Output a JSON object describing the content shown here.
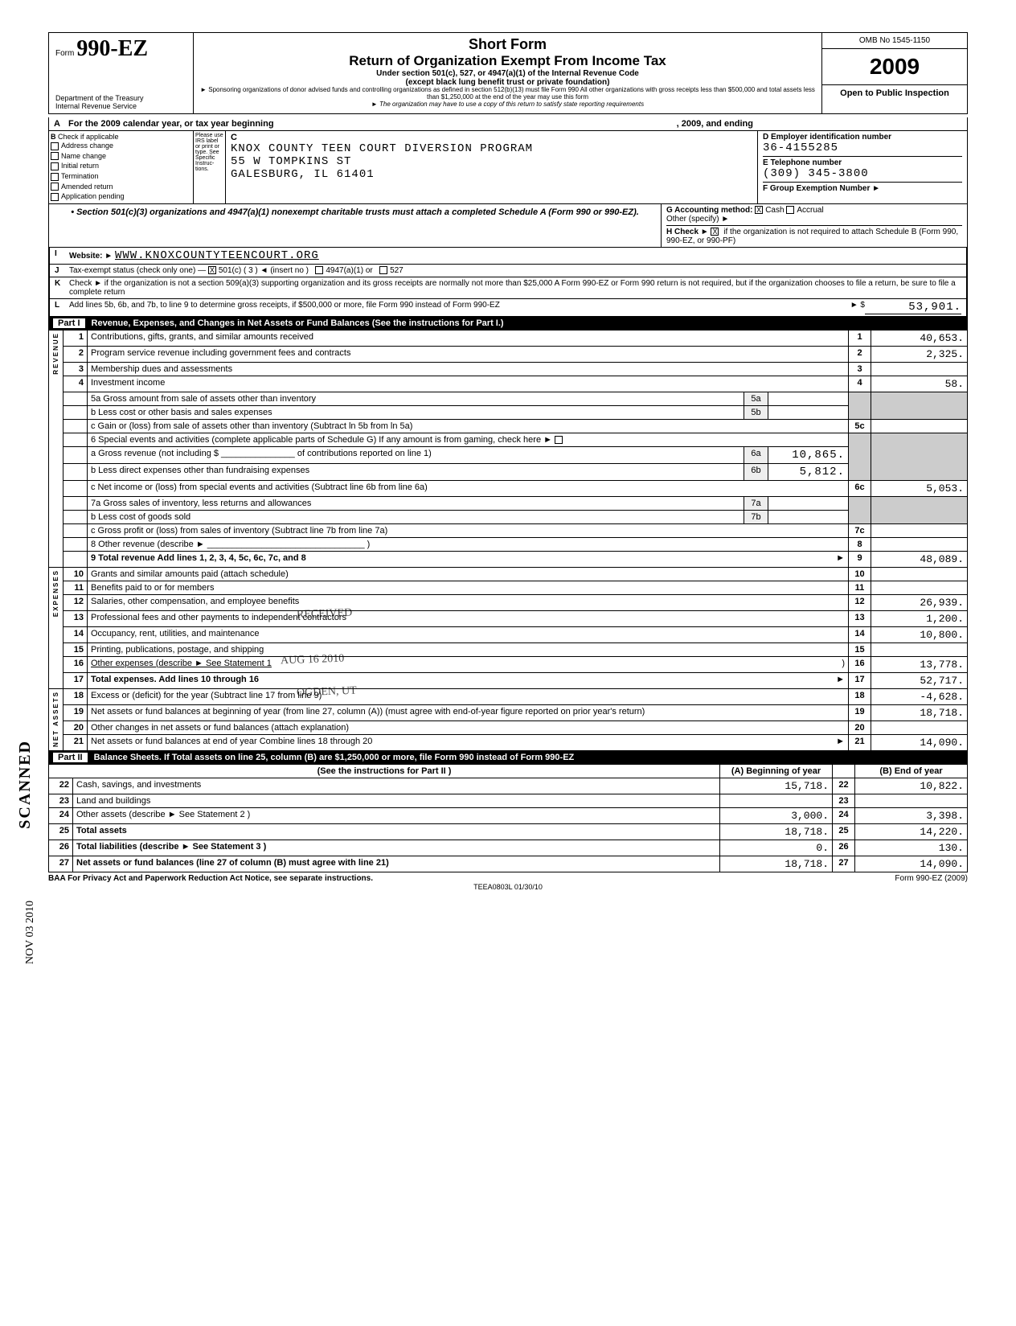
{
  "header": {
    "form_label": "Form",
    "form_number": "990-EZ",
    "short_form": "Short Form",
    "title": "Return of Organization Exempt From Income Tax",
    "subtitle1": "Under section 501(c), 527, or 4947(a)(1) of the Internal Revenue Code",
    "subtitle2": "(except black lung benefit trust or private foundation)",
    "note1": "► Sponsoring organizations of donor advised funds and controlling organizations as defined in section 512(b)(13) must file Form 990  All other organizations with gross receipts less than $500,000 and total assets less than $1,250,000 at the end of the year may use this form",
    "note2": "► The organization may have to use a copy of this return to satisfy state reporting requirements",
    "dept1": "Department of the Treasury",
    "dept2": "Internal Revenue Service",
    "omb": "OMB No  1545-1150",
    "year": "2009",
    "open": "Open to Public Inspection"
  },
  "section_a": {
    "a_text": "For the 2009 calendar year, or tax year beginning",
    "a_mid": ", 2009, and ending",
    "b_label": "Check if applicable",
    "b_items": [
      "Address change",
      "Name change",
      "Initial return",
      "Termination",
      "Amended return",
      "Application pending"
    ],
    "b_note": "Please use IRS label or print or type. See Specific Instruc-tions.",
    "c_label": "C",
    "org_name": "KNOX COUNTY TEEN COURT DIVERSION PROGRAM",
    "addr1": "55 W TOMPKINS ST",
    "addr2": "GALESBURG, IL 61401",
    "d_label": "D  Employer identification number",
    "ein": "36-4155285",
    "e_label": "E  Telephone number",
    "phone": "(309) 345-3800",
    "f_label": "F  Group Exemption Number",
    "f_arrow": "►"
  },
  "trust": {
    "left": "• Section 501(c)(3) organizations and 4947(a)(1) nonexempt charitable trusts must attach a completed Schedule A (Form 990 or 990-EZ).",
    "g_label": "G  Accounting method:",
    "g_cash": "Cash",
    "g_accrual": "Accrual",
    "g_other": "Other (specify) ►",
    "h_label": "H  Check ►",
    "h_text": "if the organization is not required to attach Schedule B (Form 990, 990-EZ, or 990-PF)"
  },
  "lines": {
    "i_label": "I",
    "website_label": "Website: ►",
    "website": "WWW.KNOXCOUNTYTEENCOURT.ORG",
    "j_label": "J",
    "j_text": "Tax-exempt status (check only one) —",
    "j_501c": "501(c)  (   3   )  ◄ (insert no )",
    "j_4947": "4947(a)(1) or",
    "j_527": "527",
    "k_label": "K",
    "k_text": "Check ►         if the organization is not a section 509(a)(3) supporting organization and its gross receipts are normally not more than $25,000  A Form 990-EZ or Form 990 return is not required, but if the organization chooses to file a return, be sure to file a complete return",
    "l_label": "L",
    "l_text": "Add lines 5b, 6b, and 7b, to line 9 to determine gross receipts, if $500,000 or more, file Form 990 instead of Form 990-EZ",
    "l_arrow": "► $",
    "l_value": "53,901."
  },
  "part1": {
    "label": "Part I",
    "title": "Revenue, Expenses, and Changes in Net Assets or Fund Balances (See the instructions for Part I.)",
    "rev_label": "REVENUE",
    "exp_label": "EXPENSES",
    "net_label": "NET ASSETS",
    "rows": [
      {
        "n": "1",
        "d": "Contributions, gifts, grants, and similar amounts received",
        "box": "1",
        "v": "40,653."
      },
      {
        "n": "2",
        "d": "Program service revenue including government fees and contracts",
        "box": "2",
        "v": "2,325."
      },
      {
        "n": "3",
        "d": "Membership dues and assessments",
        "box": "3",
        "v": ""
      },
      {
        "n": "4",
        "d": "Investment income",
        "box": "4",
        "v": "58."
      }
    ],
    "r5a_d": "5a Gross amount from sale of assets other than inventory",
    "r5a_box": "5a",
    "r5b_d": "b Less  cost or other basis and sales expenses",
    "r5b_box": "5b",
    "r5c_d": "c Gain or (loss) from sale of assets other than inventory (Subtract ln 5b from ln 5a)",
    "r5c_box": "5c",
    "r6_d": "6    Special events and activities (complete applicable parts of Schedule G)  If any amount is from gaming, check here",
    "r6_arrow": "►",
    "r6a_d": "a Gross revenue (not including $ _______________ of contributions reported on line 1)",
    "r6a_box": "6a",
    "r6a_v": "10,865.",
    "r6b_d": "b Less  direct expenses other than fundraising expenses",
    "r6b_box": "6b",
    "r6b_v": "5,812.",
    "r6c_d": "c Net income or (loss) from special events and activities (Subtract line 6b from line 6a)",
    "r6c_box": "6c",
    "r6c_v": "5,053.",
    "r7a_d": "7a Gross sales of inventory, less returns and allowances",
    "r7a_box": "7a",
    "r7b_d": "b Less  cost of goods sold",
    "r7b_box": "7b",
    "r7c_d": "c Gross profit or (loss) from sales of inventory (Subtract line 7b from line 7a)",
    "r7c_box": "7c",
    "r8_d": "8    Other revenue (describe ►",
    "r8_box": "8",
    "r9_d": "9    Total revenue  Add lines 1, 2, 3, 4, 5c, 6c, 7c, and 8",
    "r9_arrow": "►",
    "r9_box": "9",
    "r9_v": "48,089.",
    "r10_d": "Grants and similar amounts paid (attach schedule)",
    "r10_n": "10",
    "r10_box": "10",
    "r11_d": "Benefits paid to or for members",
    "r11_n": "11",
    "r11_box": "11",
    "r12_d": "Salaries, other compensation, and employee benefits",
    "r12_n": "12",
    "r12_box": "12",
    "r12_v": "26,939.",
    "r13_d": "Professional fees and other payments to independent contractors",
    "r13_n": "13",
    "r13_box": "13",
    "r13_v": "1,200.",
    "r14_d": "Occupancy, rent, utilities, and maintenance",
    "r14_n": "14",
    "r14_box": "14",
    "r14_v": "10,800.",
    "r15_d": "Printing, publications, postage, and shipping",
    "r15_n": "15",
    "r15_box": "15",
    "r16_d": "Other expenses (describe ►  See Statement 1",
    "r16_n": "16",
    "r16_box": "16",
    "r16_v": "13,778.",
    "r17_d": "Total expenses. Add lines 10 through 16",
    "r17_n": "17",
    "r17_arrow": "►",
    "r17_box": "17",
    "r17_v": "52,717.",
    "r18_d": "Excess or (deficit) for the year (Subtract line 17 from line 9)",
    "r18_n": "18",
    "r18_box": "18",
    "r18_v": "-4,628.",
    "r19_d": "Net assets or fund balances at beginning of year (from line 27, column (A)) (must agree with end-of-year figure reported on prior year's return)",
    "r19_n": "19",
    "r19_box": "19",
    "r19_v": "18,718.",
    "r20_d": "Other changes in net assets or fund balances (attach explanation)",
    "r20_n": "20",
    "r20_box": "20",
    "r21_d": "Net assets or fund balances at end of year  Combine lines 18 through 20",
    "r21_n": "21",
    "r21_arrow": "►",
    "r21_box": "21",
    "r21_v": "14,090.",
    "stamp_received": "RECEIVED",
    "stamp_date": "AUG 16 2010",
    "stamp_ogden": "OGDEN, UT"
  },
  "part2": {
    "label": "Part II",
    "title": "Balance Sheets. If Total assets on line 25, column (B) are $1,250,000 or more, file Form 990 instead of Form 990-EZ",
    "instr": "(See the instructions for Part II )",
    "col_a": "(A) Beginning of year",
    "col_b": "(B) End of year",
    "rows": [
      {
        "n": "22",
        "d": "Cash, savings, and investments",
        "a": "15,718.",
        "box": "22",
        "b": "10,822."
      },
      {
        "n": "23",
        "d": "Land and buildings",
        "a": "",
        "box": "23",
        "b": ""
      },
      {
        "n": "24",
        "d": "Other assets (describe ►  See Statement 2                           )",
        "a": "3,000.",
        "box": "24",
        "b": "3,398."
      },
      {
        "n": "25",
        "d": "Total assets",
        "a": "18,718.",
        "box": "25",
        "b": "14,220.",
        "bold": true
      },
      {
        "n": "26",
        "d": "Total liabilities (describe ►  See Statement 3                     )",
        "a": "0.",
        "box": "26",
        "b": "130.",
        "bold": true
      },
      {
        "n": "27",
        "d": "Net assets or fund balances (line 27 of column (B) must agree with line 21)",
        "a": "18,718.",
        "box": "27",
        "b": "14,090.",
        "bold": true
      }
    ]
  },
  "footer": {
    "baa": "BAA  For Privacy Act and Paperwork Reduction Act Notice, see separate instructions.",
    "code": "TEEA0803L  01/30/10",
    "form": "Form 990-EZ (2009)"
  },
  "side": {
    "scanned": "SCANNED",
    "date": "NOV 03 2010"
  }
}
